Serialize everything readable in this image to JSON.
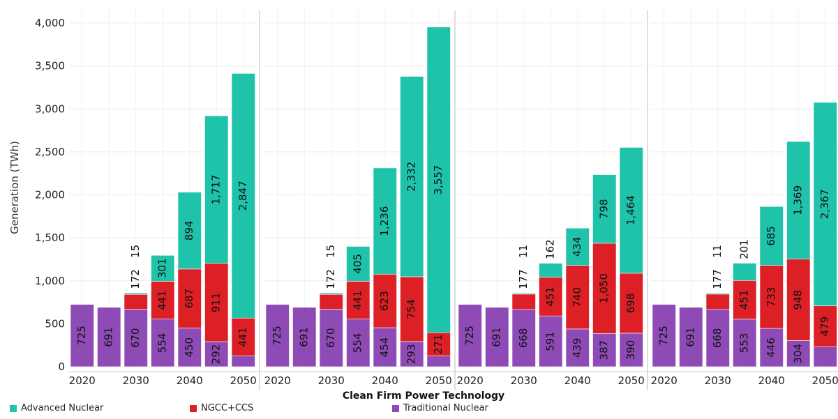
{
  "chart_data": {
    "type": "bar",
    "stacked": true,
    "ylabel": "Generation (TWh)",
    "xlabel": "Clean Firm Power Technology",
    "ylim": [
      0,
      4200
    ],
    "yticks": [
      0,
      500,
      1000,
      1500,
      2000,
      2500,
      3000,
      3500,
      4000
    ],
    "ytick_labels": [
      "0",
      "500",
      "1,000",
      "1,500",
      "2,000",
      "2,500",
      "3,000",
      "3,500",
      "4,000"
    ],
    "x_tick_labels": [
      "2020",
      "2030",
      "2040",
      "2050"
    ],
    "categories": [
      "2020",
      "2025",
      "2030",
      "2035",
      "2040",
      "2045",
      "2050"
    ],
    "grid": true,
    "legend_position": "bottom",
    "legend": [
      {
        "name": "Advanced Nuclear",
        "color": "#1fc3aa"
      },
      {
        "name": "NGCC+CCS",
        "color": "#dc2026"
      },
      {
        "name": "Traditional Nuclear",
        "color": "#8e4bb6"
      }
    ],
    "panels": [
      {
        "series": [
          {
            "name": "Traditional Nuclear",
            "color": "#8e4bb6",
            "values": [
              725,
              691,
              670,
              554,
              450,
              292,
              125
            ],
            "labels": [
              "725",
              "691",
              "670",
              "554",
              "450",
              "292",
              ""
            ]
          },
          {
            "name": "NGCC+CCS",
            "color": "#dc2026",
            "values": [
              0,
              0,
              172,
              441,
              687,
              911,
              441
            ],
            "labels": [
              "",
              "",
              "172",
              "441",
              "687",
              "911",
              "441"
            ]
          },
          {
            "name": "Advanced Nuclear",
            "color": "#1fc3aa",
            "values": [
              0,
              0,
              15,
              301,
              894,
              1717,
              2847
            ],
            "labels": [
              "",
              "",
              "15",
              "301",
              "894",
              "1,717",
              "2,847"
            ]
          }
        ]
      },
      {
        "series": [
          {
            "name": "Traditional Nuclear",
            "color": "#8e4bb6",
            "values": [
              725,
              691,
              670,
              554,
              454,
              293,
              125
            ],
            "labels": [
              "725",
              "691",
              "670",
              "554",
              "454",
              "293",
              ""
            ]
          },
          {
            "name": "NGCC+CCS",
            "color": "#dc2026",
            "values": [
              0,
              0,
              172,
              441,
              623,
              754,
              271
            ],
            "labels": [
              "",
              "",
              "172",
              "441",
              "623",
              "754",
              "271"
            ]
          },
          {
            "name": "Advanced Nuclear",
            "color": "#1fc3aa",
            "values": [
              0,
              0,
              15,
              405,
              1236,
              2332,
              3557
            ],
            "labels": [
              "",
              "",
              "15",
              "405",
              "1,236",
              "2,332",
              "3,557"
            ]
          }
        ]
      },
      {
        "series": [
          {
            "name": "Traditional Nuclear",
            "color": "#8e4bb6",
            "values": [
              725,
              691,
              668,
              591,
              439,
              387,
              390
            ],
            "labels": [
              "725",
              "691",
              "668",
              "591",
              "439",
              "387",
              "390"
            ]
          },
          {
            "name": "NGCC+CCS",
            "color": "#dc2026",
            "values": [
              0,
              0,
              177,
              451,
              740,
              1050,
              698
            ],
            "labels": [
              "",
              "",
              "177",
              "451",
              "740",
              "1,050",
              "698"
            ]
          },
          {
            "name": "Advanced Nuclear",
            "color": "#1fc3aa",
            "values": [
              0,
              0,
              11,
              162,
              434,
              798,
              1464
            ],
            "labels": [
              "",
              "",
              "11",
              "162",
              "434",
              "798",
              "1,464"
            ]
          }
        ]
      },
      {
        "series": [
          {
            "name": "Traditional Nuclear",
            "color": "#8e4bb6",
            "values": [
              725,
              691,
              668,
              553,
              446,
              304,
              230
            ],
            "labels": [
              "725",
              "691",
              "668",
              "553",
              "446",
              "304",
              ""
            ]
          },
          {
            "name": "NGCC+CCS",
            "color": "#dc2026",
            "values": [
              0,
              0,
              177,
              451,
              733,
              948,
              479
            ],
            "labels": [
              "",
              "",
              "177",
              "451",
              "733",
              "948",
              "479"
            ]
          },
          {
            "name": "Advanced Nuclear",
            "color": "#1fc3aa",
            "values": [
              0,
              0,
              11,
              201,
              685,
              1369,
              2367
            ],
            "labels": [
              "",
              "",
              "11",
              "201",
              "685",
              "1,369",
              "2,367"
            ]
          }
        ]
      }
    ]
  }
}
